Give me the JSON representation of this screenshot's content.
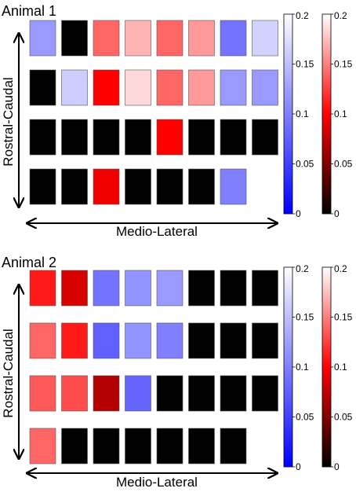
{
  "chart_data": [
    {
      "type": "heatmap",
      "title": "Animal 1",
      "xlabel": "Medio-Lateral",
      "ylabel": "Rostral-Caudal",
      "blue_scale": {
        "ticks": [
          "0",
          "0.05",
          "0.1",
          "0.15",
          "0.2"
        ],
        "range": [
          0,
          0.2
        ]
      },
      "red_scale": {
        "ticks": [
          "0",
          "0.05",
          "0.1",
          "0.15",
          "0.2"
        ],
        "range": [
          0,
          0.2
        ]
      },
      "cells": [
        [
          {
            "c": "blue",
            "v": 0.12
          },
          {
            "c": "blue",
            "v": 0
          },
          {
            "c": "red",
            "v": 0.14
          },
          {
            "c": "red",
            "v": 0.17
          },
          {
            "c": "red",
            "v": 0.14
          },
          {
            "c": "red",
            "v": 0.16
          },
          {
            "c": "blue",
            "v": 0.09
          },
          {
            "c": "blue",
            "v": 0.165
          }
        ],
        [
          {
            "c": "blue",
            "v": 0
          },
          {
            "c": "blue",
            "v": 0.16
          },
          {
            "c": "red",
            "v": 0.1
          },
          {
            "c": "red",
            "v": 0.185
          },
          {
            "c": "red",
            "v": 0.14
          },
          {
            "c": "red",
            "v": 0.16
          },
          {
            "c": "blue",
            "v": 0.12
          },
          {
            "c": "blue",
            "v": 0.12
          }
        ],
        [
          {
            "c": "blue",
            "v": 0
          },
          {
            "c": "blue",
            "v": 0
          },
          {
            "c": "blue",
            "v": 0
          },
          {
            "c": "blue",
            "v": 0
          },
          {
            "c": "red",
            "v": 0.1
          },
          {
            "c": "blue",
            "v": 0
          },
          {
            "c": "blue",
            "v": 0
          },
          {
            "c": "blue",
            "v": 0
          }
        ],
        [
          {
            "c": "blue",
            "v": 0
          },
          {
            "c": "blue",
            "v": 0
          },
          {
            "c": "red",
            "v": 0.095
          },
          {
            "c": "blue",
            "v": 0
          },
          {
            "c": "blue",
            "v": 0
          },
          {
            "c": "blue",
            "v": 0
          },
          {
            "c": "blue",
            "v": 0.1
          },
          null
        ]
      ]
    },
    {
      "type": "heatmap",
      "title": "Animal 2",
      "xlabel": "Medio-Lateral",
      "ylabel": "Rostral-Caudal",
      "blue_scale": {
        "ticks": [
          "0",
          "0.05",
          "0.1",
          "0.15",
          "0.2"
        ],
        "range": [
          0,
          0.2
        ]
      },
      "red_scale": {
        "ticks": [
          "0",
          "0.05",
          "0.1",
          "0.15",
          "0.2"
        ],
        "range": [
          0,
          0.2
        ]
      },
      "cells": [
        [
          {
            "c": "red",
            "v": 0.11
          },
          {
            "c": "red",
            "v": 0.085
          },
          {
            "c": "blue",
            "v": 0.09
          },
          {
            "c": "blue",
            "v": 0.115
          },
          {
            "c": "blue",
            "v": 0.12
          },
          {
            "c": "blue",
            "v": 0
          },
          {
            "c": "blue",
            "v": 0
          },
          {
            "c": "blue",
            "v": 0
          }
        ],
        [
          {
            "c": "red",
            "v": 0.14
          },
          {
            "c": "red",
            "v": 0.11
          },
          {
            "c": "blue",
            "v": 0.075
          },
          {
            "c": "blue",
            "v": 0.115
          },
          {
            "c": "blue",
            "v": 0.1
          },
          {
            "c": "blue",
            "v": 0
          },
          {
            "c": "blue",
            "v": 0
          },
          {
            "c": "blue",
            "v": 0
          }
        ],
        [
          {
            "c": "red",
            "v": 0.135
          },
          {
            "c": "red",
            "v": 0.13
          },
          {
            "c": "red",
            "v": 0.07
          },
          {
            "c": "blue",
            "v": 0.08
          },
          {
            "c": "blue",
            "v": 0
          },
          {
            "c": "blue",
            "v": 0
          },
          {
            "c": "blue",
            "v": 0
          },
          {
            "c": "blue",
            "v": 0
          }
        ],
        [
          {
            "c": "red",
            "v": 0.14
          },
          {
            "c": "blue",
            "v": 0
          },
          {
            "c": "blue",
            "v": 0
          },
          {
            "c": "blue",
            "v": 0
          },
          {
            "c": "blue",
            "v": 0
          },
          {
            "c": "blue",
            "v": 0
          },
          {
            "c": "blue",
            "v": 0
          },
          null
        ]
      ]
    }
  ]
}
